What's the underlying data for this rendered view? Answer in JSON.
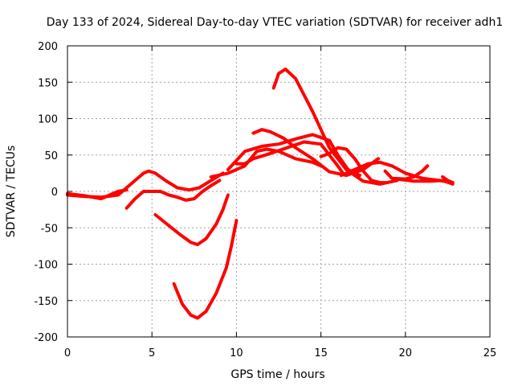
{
  "chart_data": {
    "type": "line",
    "title": "Day 133 of 2024, Sidereal Day-to-day VTEC variation (SDTVAR) for receiver adh1",
    "xlabel": "GPS time / hours",
    "ylabel": "SDTVAR / TECUs",
    "xlim": [
      0,
      25
    ],
    "ylim": [
      -200,
      200
    ],
    "xticks": [
      0,
      5,
      10,
      15,
      20,
      25
    ],
    "yticks": [
      -200,
      -150,
      -100,
      -50,
      0,
      50,
      100,
      150,
      200
    ],
    "xtick_labels": [
      "0",
      "5",
      "10",
      "15",
      "20",
      "25"
    ],
    "ytick_labels": [
      "-200",
      "-150",
      "-100",
      "-50",
      "0",
      "50",
      "100",
      "150",
      "200"
    ],
    "grid": true,
    "color": "#ff0000",
    "series": [
      {
        "name": "s1",
        "x": [
          0,
          1,
          2,
          3,
          3.5,
          4,
          4.5,
          4.8,
          5.2,
          5.8,
          6.5,
          7.2,
          7.8,
          8.5,
          9.2
        ],
        "y": [
          -5,
          -7,
          -8,
          -5,
          5,
          15,
          25,
          28,
          25,
          15,
          5,
          2,
          5,
          15,
          25
        ]
      },
      {
        "name": "s2",
        "x": [
          0,
          1,
          2,
          2.5,
          3,
          3.5
        ],
        "y": [
          -3,
          -6,
          -10,
          -5,
          0,
          2
        ]
      },
      {
        "name": "s3",
        "x": [
          3.5,
          4,
          4.5,
          5,
          5.5,
          6,
          6.5,
          7,
          7.5,
          8,
          8.5,
          9
        ],
        "y": [
          -23,
          -10,
          0,
          0,
          0,
          -5,
          -8,
          -12,
          -10,
          0,
          8,
          15
        ]
      },
      {
        "name": "s4",
        "x": [
          5.2,
          6,
          6.7,
          7.3,
          7.7,
          8.2,
          8.8,
          9.2,
          9.5
        ],
        "y": [
          -32,
          -47,
          -60,
          -70,
          -73,
          -65,
          -45,
          -25,
          -5
        ]
      },
      {
        "name": "s5",
        "x": [
          6.3,
          6.8,
          7.3,
          7.7,
          8.2,
          8.8,
          9.4,
          9.7,
          10
        ],
        "y": [
          -127,
          -155,
          -170,
          -174,
          -165,
          -140,
          -105,
          -75,
          -40
        ]
      },
      {
        "name": "s6",
        "x": [
          8.5,
          9.5,
          10.5,
          11.2,
          11.8,
          12.5,
          13.5,
          14.5,
          15
        ],
        "y": [
          20,
          25,
          35,
          55,
          58,
          55,
          45,
          40,
          35
        ]
      },
      {
        "name": "s7",
        "x": [
          9.5,
          10.5,
          11.5,
          12.5,
          13.5,
          14.5,
          15.5,
          16,
          16.6,
          17.3
        ],
        "y": [
          30,
          55,
          62,
          65,
          72,
          78,
          70,
          50,
          30,
          22
        ]
      },
      {
        "name": "s8",
        "x": [
          10,
          10.5,
          11,
          12,
          13,
          14,
          15,
          15.5,
          16,
          16.3
        ],
        "y": [
          38,
          38,
          45,
          52,
          60,
          68,
          65,
          50,
          35,
          25
        ]
      },
      {
        "name": "s9",
        "x": [
          11,
          11.5,
          12,
          12.8,
          13.5,
          14.5,
          15.5,
          16.5,
          17.5,
          18.4
        ],
        "y": [
          80,
          85,
          82,
          73,
          60,
          45,
          27,
          22,
          30,
          45
        ]
      },
      {
        "name": "s10",
        "x": [
          12.2,
          12.5,
          12.9,
          13.5,
          14.5,
          15.5,
          16.5,
          17.5,
          18.5,
          19.5
        ],
        "y": [
          142,
          162,
          168,
          155,
          110,
          60,
          30,
          14,
          10,
          15
        ]
      },
      {
        "name": "s11",
        "x": [
          15,
          15.5,
          16,
          16.5,
          17,
          17.5,
          18,
          18.5,
          18.8
        ],
        "y": [
          48,
          52,
          60,
          58,
          45,
          28,
          15,
          12,
          12
        ]
      },
      {
        "name": "s12",
        "x": [
          16.2,
          17,
          17.8,
          18.5,
          19.2,
          20,
          21,
          22,
          22.8
        ],
        "y": [
          22,
          30,
          38,
          40,
          35,
          25,
          18,
          15,
          12
        ]
      },
      {
        "name": "s13",
        "x": [
          18.8,
          19.2,
          20,
          20.5,
          21,
          21.3
        ],
        "y": [
          28,
          18,
          17,
          20,
          28,
          35
        ]
      },
      {
        "name": "s14",
        "x": [
          19.5,
          20.5,
          21.5,
          22.2,
          22.8
        ],
        "y": [
          17,
          14,
          14,
          15,
          10
        ]
      },
      {
        "name": "s15",
        "x": [
          22.2,
          22.5,
          22.8
        ],
        "y": [
          20,
          15,
          12
        ]
      }
    ]
  }
}
